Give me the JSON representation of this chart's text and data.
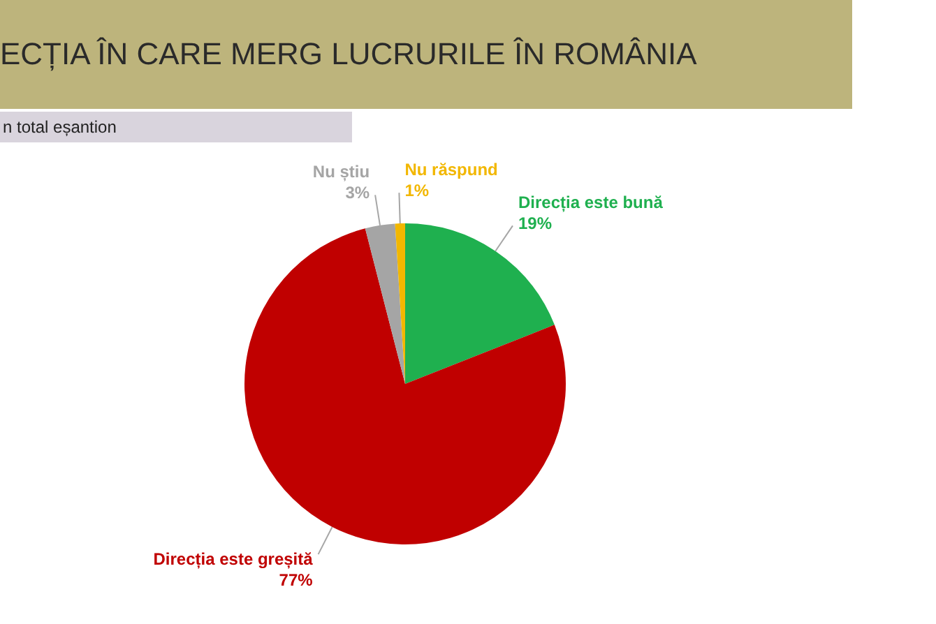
{
  "chart_data": {
    "type": "pie",
    "title": "ECȚIA ÎN CARE MERG LUCRURILE ÎN ROMÂNIA",
    "subtitle": "n total eșantion",
    "categories": [
      "Direcția este bună",
      "Direcția este greșită",
      "Nu știu",
      "Nu răspund"
    ],
    "values": [
      19,
      77,
      3,
      1
    ],
    "colors": [
      "#1fb04f",
      "#c00000",
      "#a5a5a5",
      "#f2b700"
    ],
    "value_labels": [
      "19%",
      "77%",
      "3%",
      "1%"
    ],
    "legend": false
  }
}
